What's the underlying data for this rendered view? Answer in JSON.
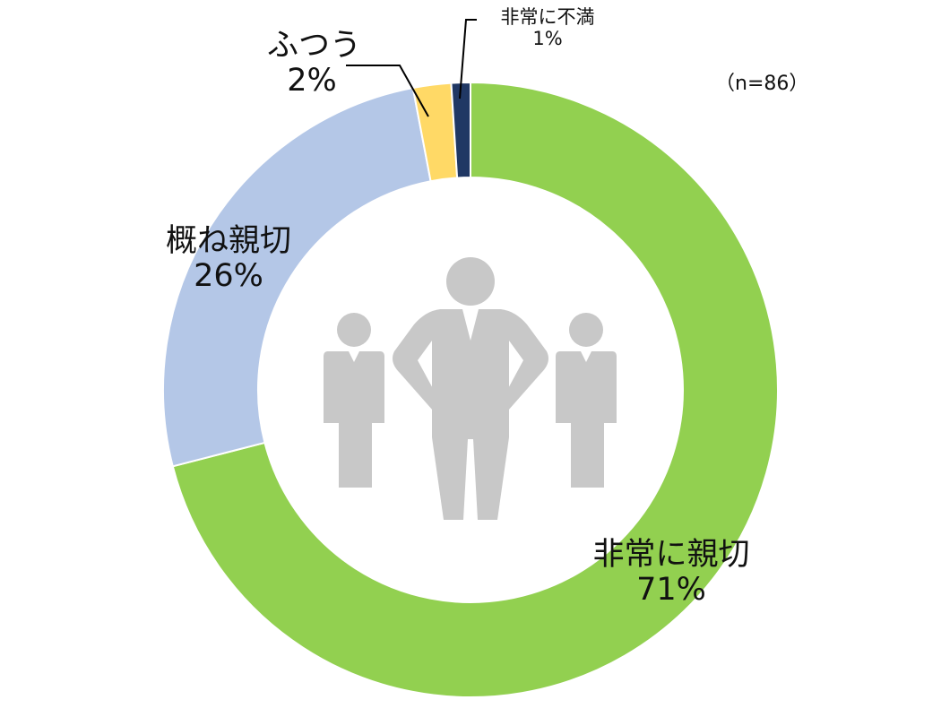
{
  "chart_data": {
    "type": "pie",
    "note": "（n=86）",
    "categories": [
      "非常に親切",
      "概ね親切",
      "ふつう",
      "非常に不満"
    ],
    "values": [
      71,
      26,
      2,
      1
    ],
    "value_labels": [
      "71%",
      "26%",
      "2%",
      "1%"
    ],
    "colors": [
      "#92D050",
      "#B4C7E7",
      "#FFD966",
      "#203864"
    ],
    "legend": "none"
  },
  "icon": "business-team-icon",
  "icon_color": "#C8C8C8"
}
